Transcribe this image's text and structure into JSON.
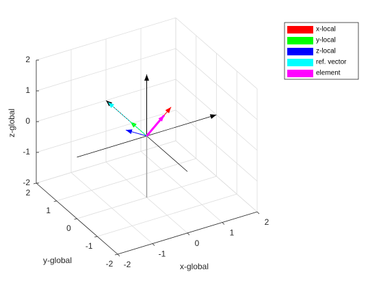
{
  "chart_data": {
    "type": "quiver3",
    "xlabel": "x-global",
    "ylabel": "y-global",
    "zlabel": "z-global",
    "xlim": [
      -2,
      2
    ],
    "ylim": [
      -2,
      2
    ],
    "zlim": [
      -2,
      2
    ],
    "xticks": [
      -2,
      -1,
      0,
      1,
      2
    ],
    "yticks": [
      -2,
      -1,
      0,
      1,
      2
    ],
    "zticks": [
      -2,
      -1,
      0,
      1,
      2
    ],
    "grid": true,
    "axis_arrow_color": "#000000",
    "legend_position": "northeast-outside",
    "series": [
      {
        "name": "x-local",
        "color": "#ff0000",
        "values": [
          0.7,
          0,
          0.7
        ]
      },
      {
        "name": "y-local",
        "color": "#00ff00",
        "values": [
          0,
          0.8,
          0
        ]
      },
      {
        "name": "z-local",
        "color": "#0000ff",
        "values": [
          -0.6,
          0,
          0.4
        ]
      },
      {
        "name": "ref. vector",
        "color": "#00ffff",
        "values": [
          0,
          1.9,
          0
        ]
      },
      {
        "name": "element",
        "color": "#ff00ff",
        "values": [
          0.5,
          0,
          0.5
        ]
      }
    ]
  }
}
